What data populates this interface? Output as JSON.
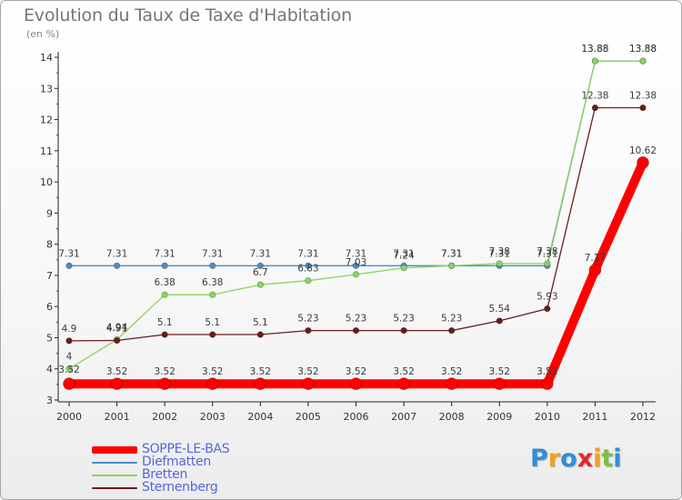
{
  "header": {
    "title": "Evolution du Taux de Taxe d'Habitation",
    "subtitle": "(en %)"
  },
  "brand": {
    "logo_letters": [
      "P",
      "r",
      "o",
      "x",
      "i",
      "t",
      "i"
    ],
    "logo_colors": [
      "#2f8fd8",
      "#f0a020",
      "#2f8fd8",
      "#e02828",
      "#f0a020",
      "#7cc040",
      "#2f8fd8"
    ]
  },
  "chart_data": {
    "type": "line",
    "title": "Evolution du Taux de Taxe d'Habitation",
    "subtitle": "(en %)",
    "xlabel": "",
    "ylabel": "",
    "x": [
      "2000",
      "2001",
      "2002",
      "2003",
      "2004",
      "2005",
      "2006",
      "2007",
      "2008",
      "2009",
      "2010",
      "2011",
      "2012"
    ],
    "ylim": [
      3,
      14
    ],
    "yticks": [
      3,
      4,
      5,
      6,
      7,
      8,
      9,
      10,
      11,
      12,
      13,
      14
    ],
    "grid": false,
    "legend_position": "bottom-left",
    "series": [
      {
        "name": "SOPPE-LE-BAS",
        "color": "#ff0000",
        "values": [
          3.52,
          3.52,
          3.52,
          3.52,
          3.52,
          3.52,
          3.52,
          3.52,
          3.52,
          3.52,
          3.52,
          7.17,
          10.62
        ],
        "labels": [
          "3.52",
          "3.52",
          "3.52",
          "3.52",
          "3.52",
          "3.52",
          "3.52",
          "3.52",
          "3.52",
          "3.52",
          "3.52",
          "7.17",
          "10.62"
        ]
      },
      {
        "name": "Diefmatten",
        "color": "#4a8cc8",
        "values": [
          7.31,
          7.31,
          7.31,
          7.31,
          7.31,
          7.31,
          7.31,
          7.31,
          7.31,
          7.31,
          7.31,
          13.88,
          13.88
        ],
        "labels": [
          "7.31",
          "7.31",
          "7.31",
          "7.31",
          "7.31",
          "7.31",
          "7.31",
          "7.31",
          "7.31",
          "7.31",
          "7.31",
          "13.88",
          "13.88"
        ]
      },
      {
        "name": "Bretten",
        "color": "#8ad45a",
        "values": [
          4,
          4.94,
          6.38,
          6.38,
          6.7,
          6.83,
          7.03,
          7.24,
          7.31,
          7.38,
          7.38,
          13.88,
          13.88
        ],
        "labels": [
          "4",
          "4.94",
          "6.38",
          "6.38",
          "6.7",
          "6.83",
          "7.03",
          "7.24",
          "7.31",
          "7.38",
          "7.38",
          "13.88",
          "13.88"
        ]
      },
      {
        "name": "Sternenberg",
        "color": "#6b1c1c",
        "values": [
          4.9,
          4.91,
          5.1,
          5.1,
          5.1,
          5.23,
          5.23,
          5.23,
          5.23,
          5.54,
          5.93,
          12.38,
          12.38
        ],
        "labels": [
          "4.9",
          "4.91",
          "5.1",
          "5.1",
          "5.1",
          "5.23",
          "5.23",
          "5.23",
          "5.23",
          "5.54",
          "5.93",
          "12.38",
          "12.38"
        ]
      }
    ]
  }
}
